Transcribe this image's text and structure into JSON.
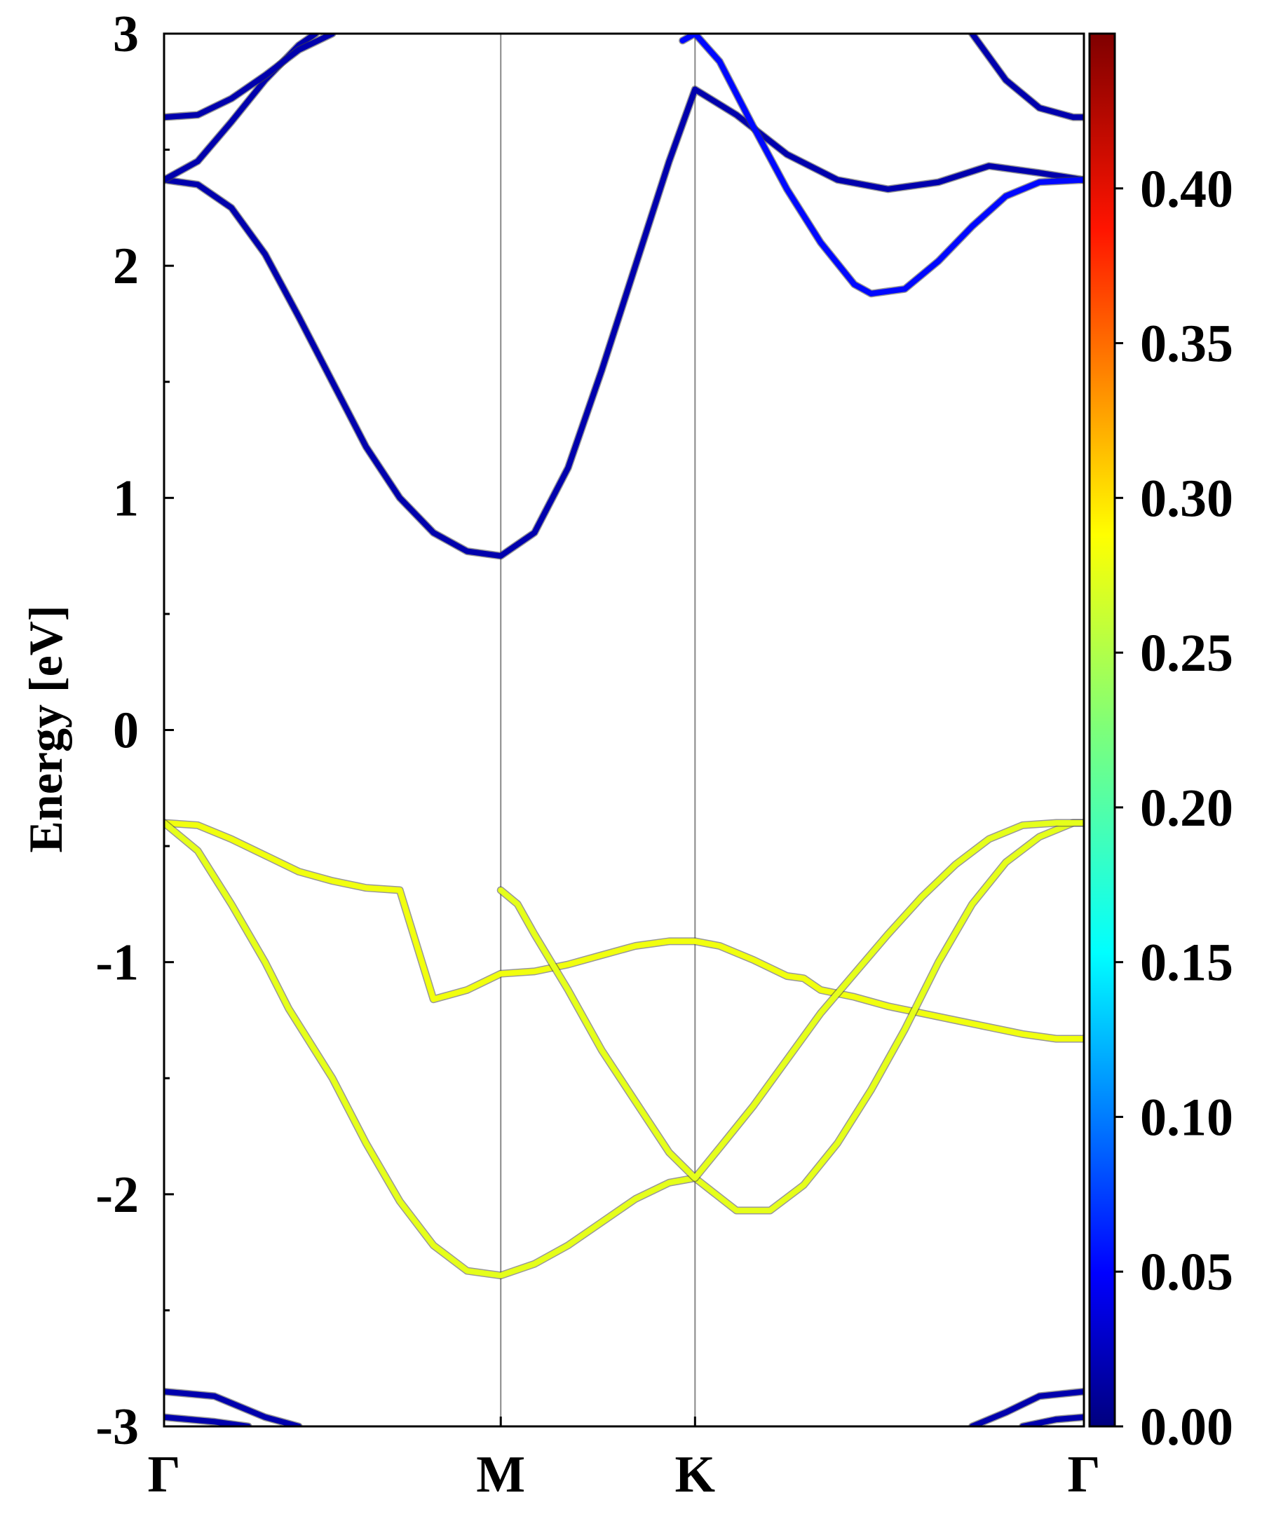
{
  "chart_data": {
    "type": "line",
    "ylabel": "Energy [eV]",
    "ylim": [
      -3,
      3
    ],
    "yticks": [
      3,
      2,
      1,
      0,
      -1,
      -2,
      -3
    ],
    "ytick_labels": [
      "3",
      "2",
      "1",
      "0",
      "-1",
      "-2",
      "-3"
    ],
    "x_kpoints": [
      {
        "label": "Γ",
        "x": 0.0
      },
      {
        "label": "M",
        "x": 1.0
      },
      {
        "label": "K",
        "x": 1.577
      },
      {
        "label": "Γ",
        "x": 2.732
      }
    ],
    "xlim": [
      0,
      2.732
    ],
    "colorbar": {
      "colormap": "jet",
      "range": [
        0,
        0.45
      ],
      "ticks": [
        0.0,
        0.05,
        0.1,
        0.15,
        0.2,
        0.25,
        0.3,
        0.35,
        0.4
      ],
      "tick_labels": [
        "0.00",
        "0.05",
        "0.10",
        "0.15",
        "0.20",
        "0.25",
        "0.30",
        "0.35",
        "0.40"
      ]
    },
    "series": [
      {
        "weight": 0.02,
        "x": [
          0.0,
          0.1,
          0.2,
          0.3,
          0.4,
          0.5,
          0.6,
          0.7,
          0.8,
          0.9,
          1.0,
          1.1,
          1.2,
          1.3,
          1.4,
          1.5,
          1.577,
          1.7,
          1.85,
          2.0,
          2.15,
          2.3,
          2.45,
          2.6,
          2.732
        ],
        "y": [
          2.37,
          2.35,
          2.25,
          2.05,
          1.78,
          1.5,
          1.22,
          1.0,
          0.85,
          0.77,
          0.75,
          0.85,
          1.13,
          1.55,
          2.0,
          2.45,
          2.76,
          2.65,
          2.48,
          2.37,
          2.33,
          2.36,
          2.43,
          2.4,
          2.37
        ]
      },
      {
        "weight": 0.02,
        "x": [
          0.0,
          0.1,
          0.2,
          0.3,
          0.4,
          0.45
        ],
        "y": [
          2.37,
          2.45,
          2.62,
          2.8,
          2.95,
          3.0
        ]
      },
      {
        "weight": 0.02,
        "x": [
          0.0,
          0.1,
          0.2,
          0.3,
          0.4,
          0.5
        ],
        "y": [
          2.64,
          2.65,
          2.72,
          2.82,
          2.93,
          3.0
        ]
      },
      {
        "weight": 0.02,
        "x": [
          2.4,
          2.5,
          2.6,
          2.7,
          2.732
        ],
        "y": [
          3.0,
          2.8,
          2.68,
          2.64,
          2.64
        ]
      },
      {
        "weight": 0.06,
        "x": [
          1.54,
          1.577,
          1.65,
          1.75,
          1.85,
          1.95,
          2.05,
          2.1,
          2.2,
          2.3,
          2.4,
          2.5,
          2.6,
          2.732
        ],
        "y": [
          2.97,
          3.0,
          2.88,
          2.6,
          2.33,
          2.1,
          1.92,
          1.88,
          1.9,
          2.02,
          2.17,
          2.3,
          2.36,
          2.37
        ]
      },
      {
        "weight": 0.275,
        "x": [
          0.0,
          0.1,
          0.2,
          0.3,
          0.4,
          0.5,
          0.6,
          0.7,
          0.8,
          0.9,
          1.0,
          1.1,
          1.2,
          1.3,
          1.4,
          1.5,
          1.577,
          1.65,
          1.75,
          1.85,
          1.9,
          1.95,
          2.05,
          2.15,
          2.25,
          2.35,
          2.45,
          2.55,
          2.65,
          2.732
        ],
        "y": [
          -0.4,
          -0.41,
          -0.47,
          -0.54,
          -0.61,
          -0.65,
          -0.68,
          -0.69,
          -1.16,
          -1.12,
          -1.05,
          -1.04,
          -1.01,
          -0.97,
          -0.93,
          -0.91,
          -0.91,
          -0.93,
          -0.99,
          -1.06,
          -1.07,
          -1.12,
          -1.15,
          -1.19,
          -1.22,
          -1.25,
          -1.28,
          -1.31,
          -1.33,
          -1.33
        ]
      },
      {
        "weight": 0.27,
        "x": [
          0.0,
          0.1,
          0.2,
          0.3,
          0.37,
          0.5,
          0.6,
          0.7,
          0.8,
          0.9,
          1.0,
          1.1,
          1.2,
          1.3,
          1.4,
          1.5,
          1.577,
          1.7,
          1.8,
          1.9,
          2.0,
          2.1,
          2.2,
          2.3,
          2.4,
          2.5,
          2.6,
          2.7,
          2.732
        ],
        "y": [
          -0.4,
          -0.52,
          -0.75,
          -1.0,
          -1.2,
          -1.5,
          -1.78,
          -2.03,
          -2.22,
          -2.33,
          -2.35,
          -2.3,
          -2.22,
          -2.12,
          -2.02,
          -1.95,
          -1.93,
          -2.07,
          -2.07,
          -1.96,
          -1.78,
          -1.55,
          -1.29,
          -1.0,
          -0.75,
          -0.57,
          -0.46,
          -0.4,
          -0.4
        ]
      },
      {
        "weight": 0.27,
        "x": [
          1.0,
          1.05,
          1.1,
          1.2,
          1.3,
          1.4,
          1.5,
          1.577,
          1.65,
          1.75,
          1.85,
          1.95,
          2.05,
          2.15,
          2.25,
          2.35,
          2.45,
          2.55,
          2.65,
          2.732
        ],
        "y": [
          -0.69,
          -0.75,
          -0.88,
          -1.12,
          -1.38,
          -1.6,
          -1.82,
          -1.93,
          -1.8,
          -1.62,
          -1.42,
          -1.22,
          -1.05,
          -0.88,
          -0.72,
          -0.58,
          -0.47,
          -0.41,
          -0.4,
          -0.4
        ]
      },
      {
        "weight": 0.02,
        "x": [
          0.0,
          0.15,
          0.3,
          0.4
        ],
        "y": [
          -2.85,
          -2.87,
          -2.96,
          -3.0
        ]
      },
      {
        "weight": 0.02,
        "x": [
          0.0,
          0.15,
          0.25
        ],
        "y": [
          -2.96,
          -2.98,
          -3.0
        ]
      },
      {
        "weight": 0.02,
        "x": [
          2.4,
          2.5,
          2.6,
          2.732
        ],
        "y": [
          -3.0,
          -2.94,
          -2.87,
          -2.85
        ]
      },
      {
        "weight": 0.02,
        "x": [
          2.55,
          2.65,
          2.732
        ],
        "y": [
          -3.0,
          -2.97,
          -2.96
        ]
      }
    ]
  }
}
